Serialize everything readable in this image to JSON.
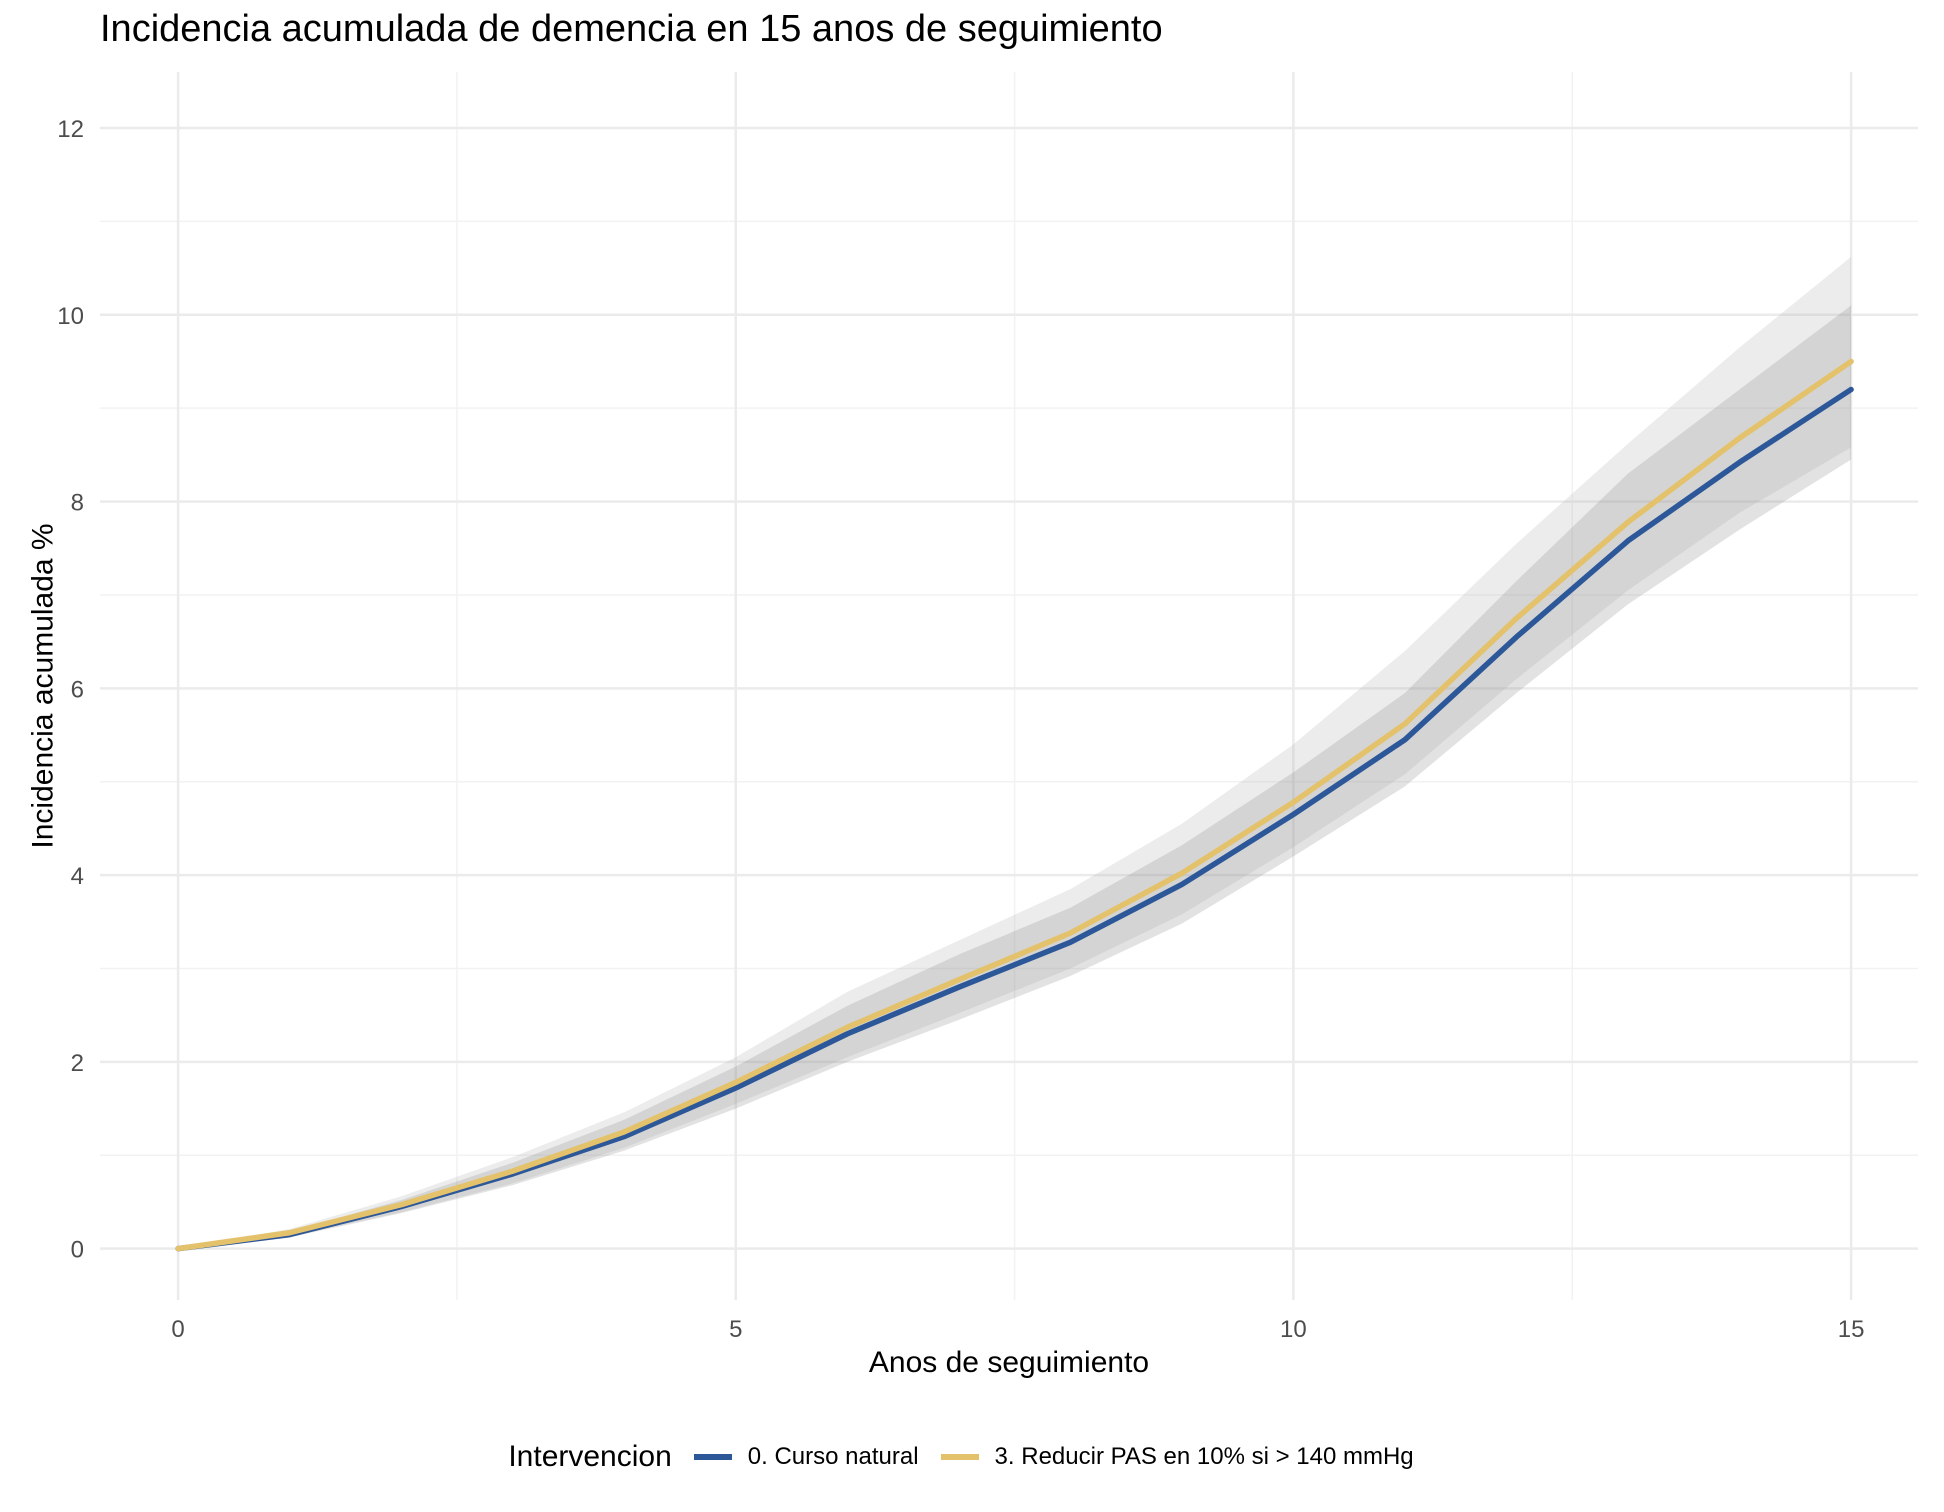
{
  "chart_data": {
    "type": "line",
    "title": "Incidencia acumulada de demencia en 15 anos de seguimiento",
    "xlabel": "Anos de seguimiento",
    "ylabel": "Incidencia acumulada %",
    "xlim": [
      -0.7,
      15.6
    ],
    "ylim": [
      -0.55,
      12.6
    ],
    "xticks": [
      0,
      5,
      10,
      15
    ],
    "yticks": [
      0,
      2,
      4,
      6,
      8,
      10,
      12
    ],
    "grid": true,
    "legend": {
      "title": "Intervencion",
      "position": "bottom"
    },
    "x": [
      0,
      1,
      2,
      3,
      4,
      5,
      6,
      7,
      8,
      9,
      10,
      11,
      12,
      13,
      14,
      15
    ],
    "series": [
      {
        "name": "0. Curso natural",
        "color": "#2c5799",
        "band_color": "#8c8c8c",
        "values": [
          0,
          0.15,
          0.45,
          0.8,
          1.2,
          1.72,
          2.3,
          2.8,
          3.28,
          3.9,
          4.65,
          5.45,
          6.55,
          7.58,
          8.42,
          9.2
        ],
        "lower": [
          0,
          0.12,
          0.38,
          0.68,
          1.05,
          1.5,
          2.0,
          2.45,
          2.92,
          3.48,
          4.2,
          4.95,
          5.95,
          6.9,
          7.7,
          8.45
        ],
        "upper": [
          0,
          0.18,
          0.52,
          0.92,
          1.38,
          1.95,
          2.6,
          3.15,
          3.65,
          4.32,
          5.1,
          5.95,
          7.15,
          8.3,
          9.2,
          10.1
        ]
      },
      {
        "name": "3. Reducir PAS en 10% si > 140 mmHg",
        "color": "#e3c26b",
        "band_color": "#b5b5b5",
        "values": [
          0,
          0.17,
          0.47,
          0.83,
          1.25,
          1.78,
          2.37,
          2.88,
          3.38,
          4.02,
          4.78,
          5.62,
          6.75,
          7.78,
          8.68,
          9.5
        ],
        "lower": [
          0,
          0.13,
          0.39,
          0.7,
          1.08,
          1.55,
          2.05,
          2.52,
          3.0,
          3.58,
          4.3,
          5.08,
          6.1,
          7.05,
          7.88,
          8.58
        ],
        "upper": [
          0,
          0.21,
          0.56,
          0.98,
          1.46,
          2.05,
          2.75,
          3.3,
          3.85,
          4.55,
          5.4,
          6.4,
          7.55,
          8.62,
          9.65,
          10.62
        ]
      }
    ]
  }
}
